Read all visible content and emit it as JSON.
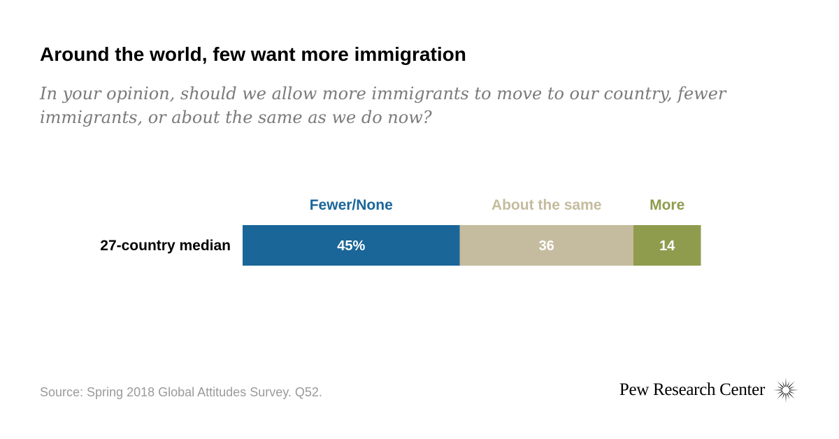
{
  "header": {
    "title": "Around the world, few want more immigration",
    "subtitle": "In your opinion, should we allow more immigrants to move to our country, fewer immigrants, or about the same as we do now?"
  },
  "chart_data": {
    "type": "bar",
    "orientation": "horizontal",
    "stacked": true,
    "categories": [
      "27-country median"
    ],
    "series": [
      {
        "name": "Fewer/None",
        "values": [
          45
        ],
        "label": "45%",
        "color": "#1a6699"
      },
      {
        "name": "About the same",
        "values": [
          36
        ],
        "label": "36",
        "color": "#c5bb9e"
      },
      {
        "name": "More",
        "values": [
          14
        ],
        "label": "14",
        "color": "#8f9c4e"
      }
    ],
    "legend_placement": "top",
    "grid": false
  },
  "footer": {
    "source": "Source: Spring 2018 Global Attitudes Survey. Q52.",
    "brand": "Pew Research Center"
  }
}
